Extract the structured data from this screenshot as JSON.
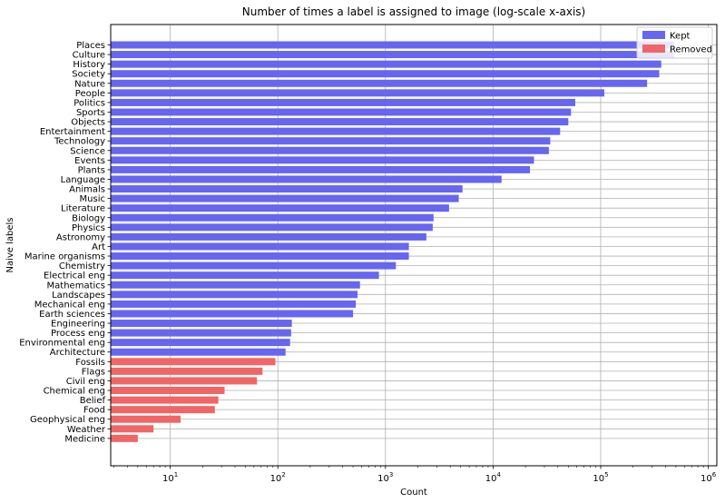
{
  "chart_data": {
    "type": "bar",
    "orientation": "horizontal",
    "title": "Number of times a label is assigned to image (log-scale x-axis)",
    "xlabel": "Count",
    "ylabel": "Naive labels",
    "xscale": "log",
    "xlim": [
      2.8,
      1200000
    ],
    "xticks": [
      {
        "value": 10,
        "base": "10",
        "exp": "1"
      },
      {
        "value": 100,
        "base": "10",
        "exp": "2"
      },
      {
        "value": 1000,
        "base": "10",
        "exp": "3"
      },
      {
        "value": 10000,
        "base": "10",
        "exp": "4"
      },
      {
        "value": 100000,
        "base": "10",
        "exp": "5"
      },
      {
        "value": 1000000,
        "base": "10",
        "exp": "6"
      }
    ],
    "grid": true,
    "legend_placement": "top-right",
    "series": [
      {
        "name": "Kept",
        "color": "#6666f0"
      },
      {
        "name": "Removed",
        "color": "#f06666"
      }
    ],
    "categories": [
      {
        "label": "Places",
        "value": 480000,
        "series": "Kept"
      },
      {
        "label": "Culture",
        "value": 480000,
        "series": "Kept"
      },
      {
        "label": "History",
        "value": 365000,
        "series": "Kept"
      },
      {
        "label": "Society",
        "value": 350000,
        "series": "Kept"
      },
      {
        "label": "Nature",
        "value": 270000,
        "series": "Kept"
      },
      {
        "label": "People",
        "value": 108000,
        "series": "Kept"
      },
      {
        "label": "Politics",
        "value": 58000,
        "series": "Kept"
      },
      {
        "label": "Sports",
        "value": 53000,
        "series": "Kept"
      },
      {
        "label": "Objects",
        "value": 50000,
        "series": "Kept"
      },
      {
        "label": "Entertainment",
        "value": 42000,
        "series": "Kept"
      },
      {
        "label": "Technology",
        "value": 34000,
        "series": "Kept"
      },
      {
        "label": "Science",
        "value": 33000,
        "series": "Kept"
      },
      {
        "label": "Events",
        "value": 24000,
        "series": "Kept"
      },
      {
        "label": "Plants",
        "value": 22000,
        "series": "Kept"
      },
      {
        "label": "Language",
        "value": 12000,
        "series": "Kept"
      },
      {
        "label": "Animals",
        "value": 5200,
        "series": "Kept"
      },
      {
        "label": "Music",
        "value": 4800,
        "series": "Kept"
      },
      {
        "label": "Literature",
        "value": 3900,
        "series": "Kept"
      },
      {
        "label": "Biology",
        "value": 2800,
        "series": "Kept"
      },
      {
        "label": "Physics",
        "value": 2750,
        "series": "Kept"
      },
      {
        "label": "Astronomy",
        "value": 2400,
        "series": "Kept"
      },
      {
        "label": "Art",
        "value": 1650,
        "series": "Kept"
      },
      {
        "label": "Marine organisms",
        "value": 1650,
        "series": "Kept"
      },
      {
        "label": "Chemistry",
        "value": 1250,
        "series": "Kept"
      },
      {
        "label": "Electrical eng",
        "value": 870,
        "series": "Kept"
      },
      {
        "label": "Mathematics",
        "value": 580,
        "series": "Kept"
      },
      {
        "label": "Landscapes",
        "value": 550,
        "series": "Kept"
      },
      {
        "label": "Mechanical eng",
        "value": 530,
        "series": "Kept"
      },
      {
        "label": "Earth sciences",
        "value": 500,
        "series": "Kept"
      },
      {
        "label": "Engineering",
        "value": 135,
        "series": "Kept"
      },
      {
        "label": "Process eng",
        "value": 133,
        "series": "Kept"
      },
      {
        "label": "Environmental eng",
        "value": 130,
        "series": "Kept"
      },
      {
        "label": "Architecture",
        "value": 118,
        "series": "Kept"
      },
      {
        "label": "Fossils",
        "value": 95,
        "series": "Removed"
      },
      {
        "label": "Flags",
        "value": 72,
        "series": "Removed"
      },
      {
        "label": "Civil eng",
        "value": 64,
        "series": "Removed"
      },
      {
        "label": "Chemical eng",
        "value": 32,
        "series": "Removed"
      },
      {
        "label": "Belief",
        "value": 28,
        "series": "Removed"
      },
      {
        "label": "Food",
        "value": 26,
        "series": "Removed"
      },
      {
        "label": "Geophysical eng",
        "value": 12.5,
        "series": "Removed"
      },
      {
        "label": "Weather",
        "value": 7,
        "series": "Removed"
      },
      {
        "label": "Medicine",
        "value": 5,
        "series": "Removed"
      }
    ]
  }
}
